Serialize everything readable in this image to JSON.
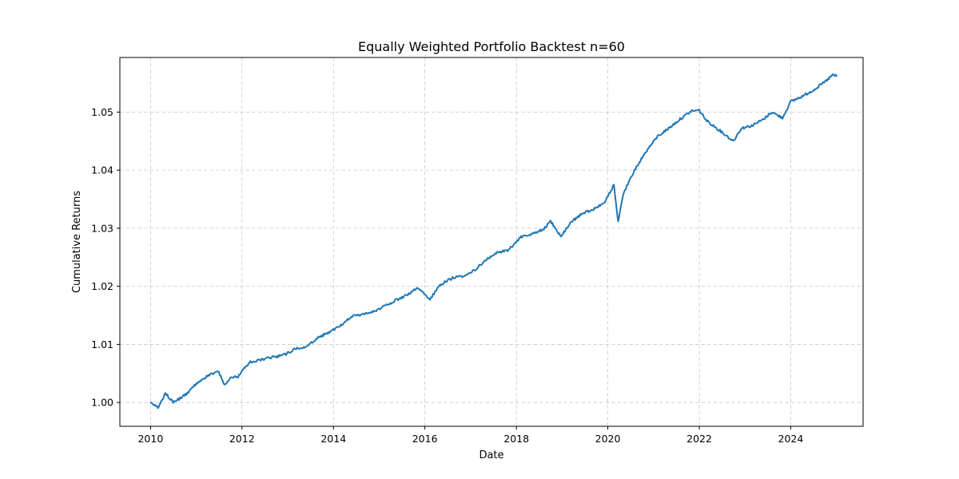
{
  "chart_data": {
    "type": "line",
    "title": "Equally Weighted Portfolio Backtest n=60",
    "xlabel": "Date",
    "ylabel": "Cumulative Returns",
    "xlim": [
      "2009-05-01",
      "2025-08-01"
    ],
    "ylim": [
      0.9959,
      1.0594
    ],
    "x_ticks": [
      "2010",
      "2012",
      "2014",
      "2016",
      "2018",
      "2020",
      "2022",
      "2024"
    ],
    "y_ticks": [
      "1.00",
      "1.01",
      "1.02",
      "1.03",
      "1.04",
      "1.05"
    ],
    "grid": true,
    "color": "#1f77b4",
    "series": [
      {
        "name": "",
        "x": [
          "2010-01-04",
          "2010-03-01",
          "2010-05-01",
          "2010-07-01",
          "2010-09-01",
          "2010-11-01",
          "2011-01-01",
          "2011-03-01",
          "2011-05-01",
          "2011-07-01",
          "2011-08-15",
          "2011-10-01",
          "2011-12-01",
          "2012-03-01",
          "2012-06-01",
          "2012-09-01",
          "2012-12-01",
          "2013-03-01",
          "2013-06-01",
          "2013-09-01",
          "2013-12-01",
          "2014-03-01",
          "2014-06-01",
          "2014-09-01",
          "2014-12-01",
          "2015-03-01",
          "2015-06-01",
          "2015-08-25",
          "2015-11-01",
          "2016-02-11",
          "2016-05-01",
          "2016-08-01",
          "2016-11-01",
          "2017-02-01",
          "2017-05-01",
          "2017-08-01",
          "2017-11-01",
          "2018-02-08",
          "2018-05-01",
          "2018-08-01",
          "2018-10-01",
          "2018-12-24",
          "2019-03-01",
          "2019-06-01",
          "2019-09-01",
          "2019-12-01",
          "2020-02-19",
          "2020-03-23",
          "2020-05-01",
          "2020-08-01",
          "2020-11-01",
          "2021-02-01",
          "2021-05-01",
          "2021-08-01",
          "2021-11-01",
          "2022-01-01",
          "2022-03-01",
          "2022-06-15",
          "2022-09-30",
          "2022-12-01",
          "2023-03-01",
          "2023-06-01",
          "2023-08-01",
          "2023-10-27",
          "2024-01-01",
          "2024-04-01",
          "2024-07-01",
          "2024-10-01",
          "2024-12-01",
          "2025-01-01"
        ],
        "y": [
          1.0,
          0.9991,
          1.0016,
          1.0,
          1.0008,
          1.0018,
          1.0033,
          1.0042,
          1.0049,
          1.0052,
          1.003,
          1.0043,
          1.0045,
          1.0069,
          1.0074,
          1.0078,
          1.0082,
          1.0092,
          1.0097,
          1.0112,
          1.0121,
          1.0133,
          1.0148,
          1.0152,
          1.0158,
          1.0168,
          1.0178,
          1.0187,
          1.0198,
          1.0178,
          1.0202,
          1.0214,
          1.0218,
          1.0228,
          1.0245,
          1.0258,
          1.0263,
          1.0285,
          1.029,
          1.0298,
          1.0312,
          1.0285,
          1.0308,
          1.0324,
          1.0332,
          1.0342,
          1.0375,
          1.031,
          1.0358,
          1.04,
          1.0432,
          1.0458,
          1.0472,
          1.0488,
          1.0502,
          1.0503,
          1.0485,
          1.0468,
          1.045,
          1.0472,
          1.0477,
          1.0488,
          1.05,
          1.049,
          1.0518,
          1.0527,
          1.0538,
          1.0552,
          1.0564,
          1.0562
        ]
      }
    ]
  }
}
